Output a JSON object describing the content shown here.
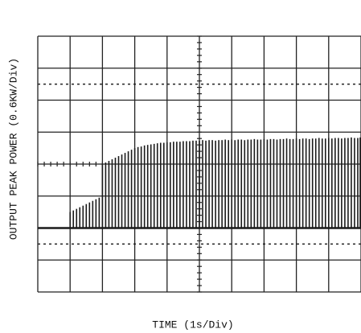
{
  "chart_data": {
    "type": "pulse",
    "x_label": "TIME (1s/Div)",
    "y_label": "OUTPUT PEAK POWER (0.6KW/Div)",
    "xlim": [
      0,
      10
    ],
    "ylim": [
      -1.2,
      3.6
    ],
    "xticks": [
      0,
      1,
      2,
      3,
      4,
      5,
      6,
      7,
      8,
      9,
      10
    ],
    "yticks": [
      -1.2,
      -0.6,
      0,
      0.6,
      1.2,
      1.8,
      2.4,
      3.0,
      3.6
    ],
    "dotted_lines": [
      -0.3,
      2.7
    ],
    "grid": true,
    "color": "#1a1a1a",
    "x": [
      1.0,
      1.1,
      1.2,
      1.3,
      1.4,
      1.5,
      1.6,
      1.7,
      1.8,
      1.9,
      2.0,
      2.1,
      2.2,
      2.3,
      2.4,
      2.5,
      2.6,
      2.7,
      2.8,
      2.9,
      3.0,
      3.1,
      3.2,
      3.3,
      3.4,
      3.5,
      3.6,
      3.7,
      3.8,
      3.9,
      4.0,
      4.1,
      4.2,
      4.3,
      4.4,
      4.5,
      4.6,
      4.7,
      4.8,
      4.9,
      5.0,
      5.1,
      5.2,
      5.3,
      5.4,
      5.5,
      5.6,
      5.7,
      5.8,
      5.9,
      6.0,
      6.1,
      6.2,
      6.3,
      6.4,
      6.5,
      6.6,
      6.7,
      6.8,
      6.9,
      7.0,
      7.1,
      7.2,
      7.3,
      7.4,
      7.5,
      7.6,
      7.7,
      7.8,
      7.9,
      8.0,
      8.1,
      8.2,
      8.3,
      8.4,
      8.5,
      8.6,
      8.7,
      8.8,
      8.9,
      9.0,
      9.1,
      9.2,
      9.3,
      9.4,
      9.5,
      9.6,
      9.7,
      9.8,
      9.9,
      10.0
    ],
    "values": [
      0.3,
      0.33,
      0.36,
      0.39,
      0.42,
      0.45,
      0.48,
      0.51,
      0.54,
      0.57,
      1.2,
      1.23,
      1.26,
      1.29,
      1.32,
      1.35,
      1.38,
      1.41,
      1.44,
      1.47,
      1.5,
      1.52,
      1.53,
      1.55,
      1.56,
      1.57,
      1.58,
      1.59,
      1.6,
      1.6,
      1.61,
      1.61,
      1.62,
      1.62,
      1.62,
      1.63,
      1.63,
      1.63,
      1.64,
      1.64,
      1.64,
      1.65,
      1.64,
      1.65,
      1.65,
      1.64,
      1.65,
      1.65,
      1.66,
      1.65,
      1.66,
      1.65,
      1.66,
      1.66,
      1.65,
      1.66,
      1.66,
      1.67,
      1.66,
      1.66,
      1.67,
      1.66,
      1.67,
      1.67,
      1.66,
      1.67,
      1.67,
      1.68,
      1.67,
      1.67,
      1.68,
      1.67,
      1.68,
      1.68,
      1.67,
      1.68,
      1.68,
      1.69,
      1.68,
      1.68,
      1.69,
      1.68,
      1.69,
      1.69,
      1.68,
      1.69,
      1.69,
      1.7,
      1.69,
      1.69,
      1.7
    ]
  }
}
